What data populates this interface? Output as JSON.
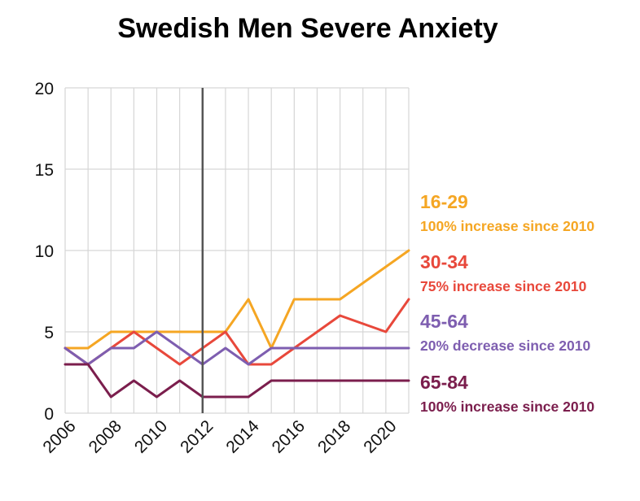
{
  "chart_data": {
    "type": "line",
    "title": "Swedish Men Severe Anxiety",
    "xlabel": "",
    "ylabel": "",
    "xlim": [
      2006,
      2021
    ],
    "ylim": [
      0,
      20
    ],
    "x_ticks": [
      2006,
      2008,
      2010,
      2012,
      2014,
      2016,
      2018,
      2020
    ],
    "x_tick_labels": [
      "2006",
      "2008",
      "2010",
      "2012",
      "2014",
      "2016",
      "2018",
      "2020"
    ],
    "y_ticks": [
      0,
      5,
      10,
      15,
      20
    ],
    "y_tick_labels": [
      "0",
      "5",
      "10",
      "15",
      "20"
    ],
    "grid": true,
    "reference_line_x": 2012,
    "x": [
      2006,
      2007,
      2008,
      2009,
      2010,
      2011,
      2012,
      2013,
      2014,
      2015,
      2016,
      2017,
      2018,
      2019,
      2020,
      2021
    ],
    "series": [
      {
        "name": "16-29",
        "note": "100% increase since 2010",
        "color": "#F5A623",
        "values": [
          4,
          4,
          5,
          5,
          5,
          5,
          5,
          5,
          7,
          4,
          7,
          7,
          7,
          8,
          9,
          10
        ]
      },
      {
        "name": "30-34",
        "note": "75% increase since 2010",
        "color": "#E8483B",
        "values": [
          4,
          3,
          4,
          5,
          4,
          3,
          4,
          5,
          3,
          3,
          4,
          5,
          6,
          5.5,
          5,
          7
        ]
      },
      {
        "name": "45-64",
        "note": "20% decrease since 2010",
        "color": "#7E5EB0",
        "values": [
          4,
          3,
          4,
          4,
          5,
          4,
          3,
          4,
          3,
          4,
          4,
          4,
          4,
          4,
          4,
          4
        ]
      },
      {
        "name": "65-84",
        "note": "100% increase since 2010",
        "color": "#7B1E4D",
        "values": [
          3,
          3,
          1,
          2,
          1,
          2,
          1,
          1,
          1,
          2,
          2,
          2,
          2,
          2,
          2,
          2
        ]
      }
    ],
    "legend_placement": "right"
  }
}
